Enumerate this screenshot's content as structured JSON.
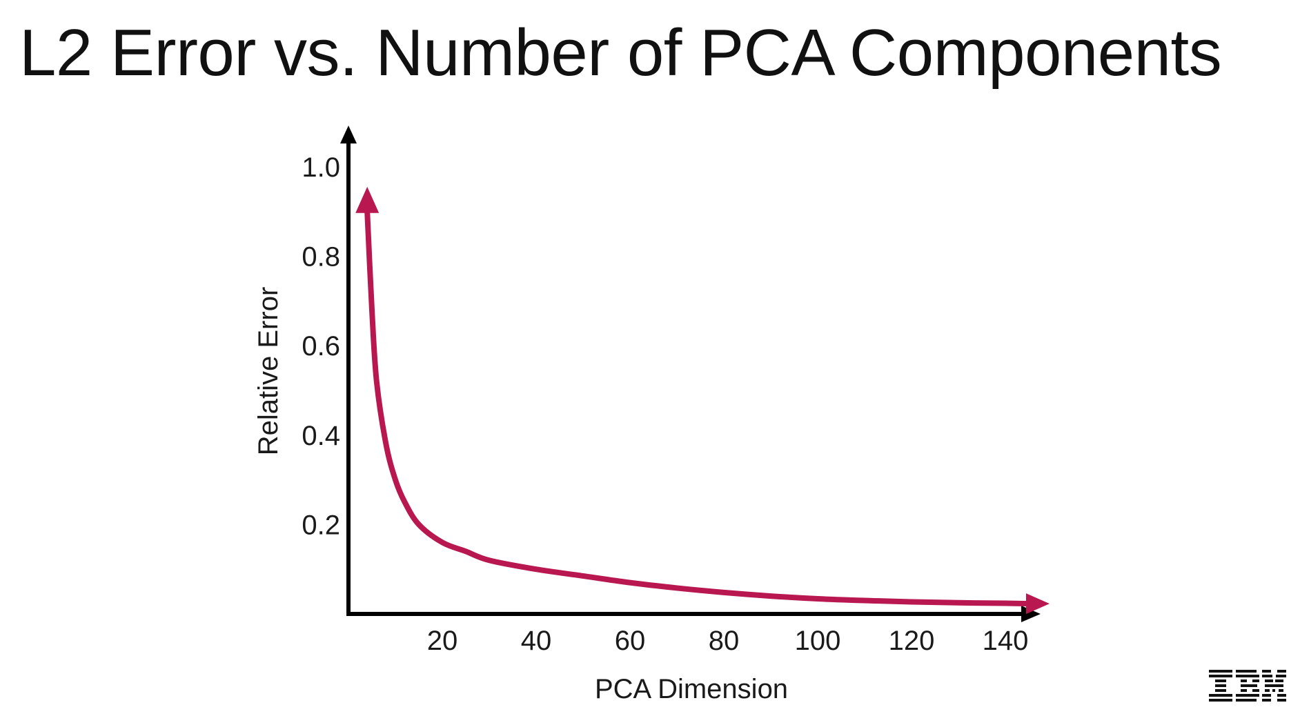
{
  "slide": {
    "title": "L2 Error vs. Number of PCA Components"
  },
  "chart_data": {
    "type": "line",
    "xlabel": "PCA Dimension",
    "ylabel": "Relative Error",
    "xlim": [
      0,
      150
    ],
    "ylim": [
      0,
      1.05
    ],
    "x_ticks": [
      20,
      40,
      60,
      80,
      100,
      120,
      140
    ],
    "y_ticks": [
      0.2,
      0.4,
      0.6,
      0.8,
      1.0
    ],
    "y_tick_labels": [
      "0.2",
      "0.4",
      "0.6",
      "0.8",
      "1.0"
    ],
    "grid": false,
    "legend": "none",
    "series": [
      {
        "color": "#b8174f",
        "x": [
          4,
          5,
          6,
          8,
          10,
          12,
          15,
          20,
          25,
          30,
          40,
          50,
          60,
          70,
          80,
          90,
          100,
          110,
          120,
          130,
          140,
          145
        ],
        "y": [
          0.9,
          0.68,
          0.52,
          0.38,
          0.3,
          0.25,
          0.2,
          0.16,
          0.14,
          0.12,
          0.1,
          0.085,
          0.07,
          0.058,
          0.048,
          0.04,
          0.034,
          0.03,
          0.027,
          0.025,
          0.024,
          0.023
        ]
      }
    ]
  },
  "logo": {
    "text": "IBM"
  }
}
